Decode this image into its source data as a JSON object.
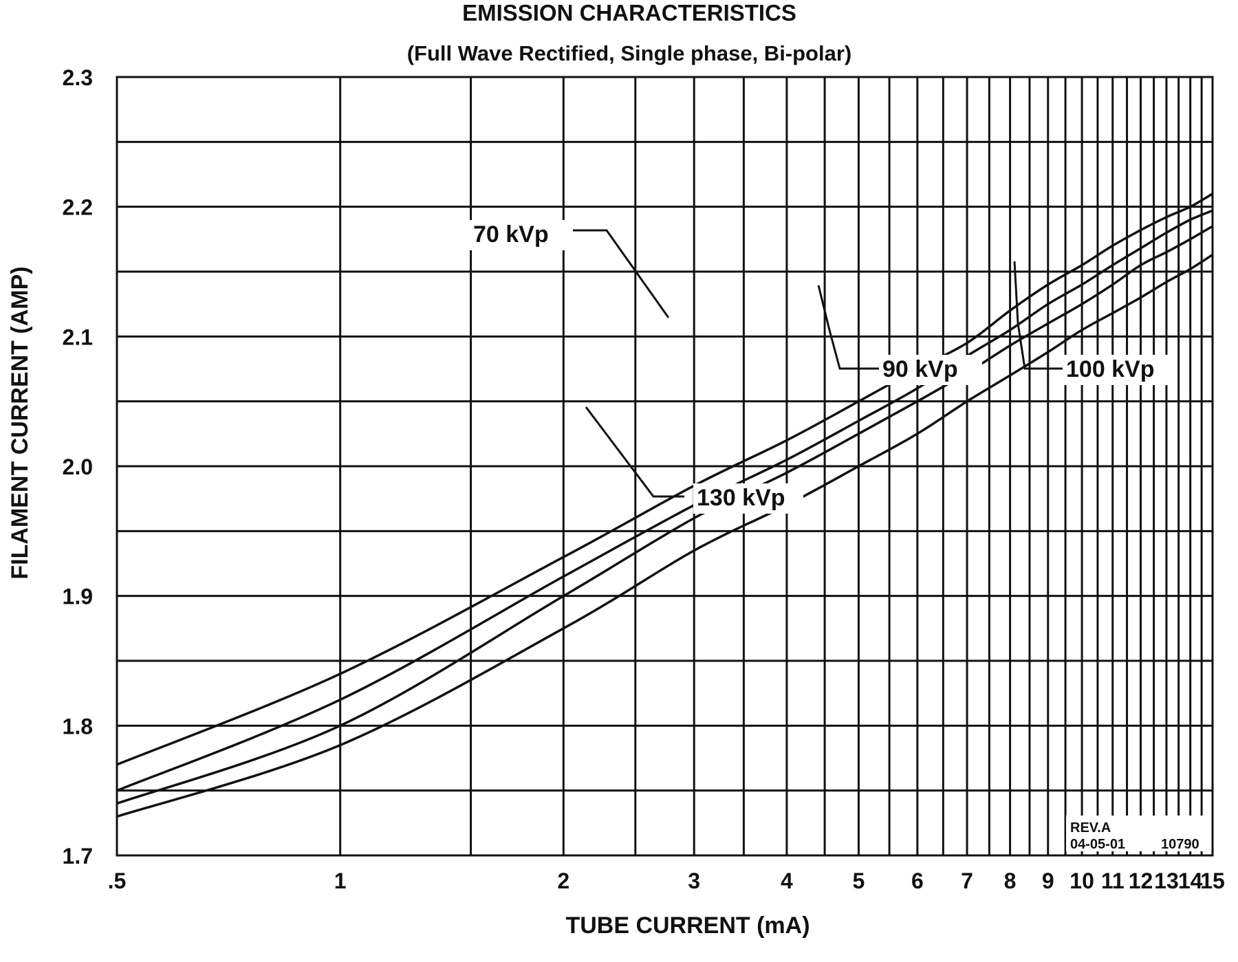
{
  "chart_data": {
    "type": "line",
    "title": "EMISSION CHARACTERISTICS",
    "subtitle": "(Full Wave Rectified, Single phase, Bi-polar)",
    "xlabel": "TUBE CURRENT (mA)",
    "ylabel": "FILAMENT CURRENT (AMP)",
    "xlim": [
      0.5,
      15
    ],
    "ylim": [
      1.7,
      2.3
    ],
    "x_scale": "log",
    "grid": true,
    "legend": "none (series labeled inline with leader lines)",
    "x_tick_labels": [
      ".5",
      "1",
      "2",
      "3",
      "4",
      "5",
      "6",
      "7",
      "8",
      "9",
      "10",
      "11",
      "12",
      "13",
      "14",
      "15"
    ],
    "x_tick_values": [
      0.5,
      1,
      2,
      3,
      4,
      5,
      6,
      7,
      8,
      9,
      10,
      11,
      12,
      13,
      14,
      15
    ],
    "y_tick_labels": [
      "1.7",
      "1.8",
      "1.9",
      "2.0",
      "2.1",
      "2.2",
      "2.3"
    ],
    "y_tick_values": [
      1.7,
      1.8,
      1.9,
      2.0,
      2.1,
      2.2,
      2.3
    ],
    "series": [
      {
        "name": "70 kVp",
        "x": [
          0.5,
          1,
          2,
          3,
          4,
          5,
          6,
          7,
          8,
          9,
          10,
          11,
          12,
          13,
          14,
          15
        ],
        "y": [
          1.77,
          1.84,
          1.93,
          1.985,
          2.02,
          2.05,
          2.075,
          2.095,
          2.12,
          2.14,
          2.155,
          2.17,
          2.182,
          2.192,
          2.2,
          2.21
        ]
      },
      {
        "name": "90 kVp",
        "x": [
          0.5,
          1,
          2,
          3,
          4,
          5,
          6,
          7,
          8,
          9,
          10,
          11,
          12,
          13,
          14,
          15
        ],
        "y": [
          1.75,
          1.82,
          1.915,
          1.97,
          2.005,
          2.035,
          2.06,
          2.085,
          2.105,
          2.125,
          2.14,
          2.155,
          2.168,
          2.18,
          2.19,
          2.197
        ]
      },
      {
        "name": "100 kVp",
        "x": [
          0.5,
          1,
          2,
          3,
          4,
          5,
          6,
          7,
          8,
          9,
          10,
          11,
          12,
          13,
          14,
          15
        ],
        "y": [
          1.74,
          1.8,
          1.9,
          1.96,
          1.995,
          2.025,
          2.05,
          2.072,
          2.093,
          2.11,
          2.125,
          2.14,
          2.155,
          2.165,
          2.175,
          2.185
        ]
      },
      {
        "name": "130 kVp",
        "x": [
          0.5,
          1,
          2,
          3,
          4,
          5,
          6,
          7,
          8,
          9,
          10,
          11,
          12,
          13,
          14,
          15
        ],
        "y": [
          1.73,
          1.785,
          1.875,
          1.935,
          1.97,
          2.0,
          2.025,
          2.05,
          2.07,
          2.088,
          2.105,
          2.118,
          2.13,
          2.142,
          2.152,
          2.163
        ]
      }
    ],
    "annotations": [
      "REV.A",
      "04-05-01",
      "10790"
    ]
  }
}
